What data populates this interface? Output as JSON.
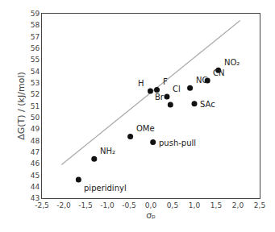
{
  "chart_data": {
    "type": "scatter",
    "x_label": "σₚ",
    "y_label": "ΔG(T) / (kJ/mol)",
    "x": [
      -1.66,
      -1.3,
      -0.47,
      0.05,
      -0.01,
      0.14,
      0.37,
      0.45,
      0.9,
      1.0,
      1.3,
      1.55
    ],
    "values": [
      44.6,
      46.4,
      48.35,
      47.85,
      52.3,
      52.4,
      51.8,
      51.1,
      52.55,
      51.2,
      53.2,
      54.1
    ],
    "color": "#111111",
    "marker": "circle",
    "annotations": [
      {
        "x": -1.66,
        "y": 44.6,
        "text": "piperidinyl"
      },
      {
        "x": -1.3,
        "y": 46.4,
        "text": "NH₂"
      },
      {
        "x": -0.47,
        "y": 48.35,
        "text": "OMe"
      },
      {
        "x": 0.05,
        "y": 47.85,
        "text": "push-pull"
      },
      {
        "x": -0.01,
        "y": 52.3,
        "text": "H"
      },
      {
        "x": 0.14,
        "y": 52.4,
        "text": "F"
      },
      {
        "x": 0.37,
        "y": 51.8,
        "text": "Cl"
      },
      {
        "x": 0.45,
        "y": 51.1,
        "text": "Br"
      },
      {
        "x": 0.9,
        "y": 52.55,
        "text": "NC"
      },
      {
        "x": 1.0,
        "y": 51.2,
        "text": "SAc"
      },
      {
        "x": 1.3,
        "y": 53.2,
        "text": "CN"
      },
      {
        "x": 1.55,
        "y": 54.1,
        "text": "NO₂"
      }
    ],
    "trendline": {
      "type": "line",
      "x": [
        -2.05,
        2.05
      ],
      "values": [
        45.8975,
        58.4025
      ],
      "color": "#aaaaaa",
      "line_style": "solid"
    },
    "xlim": [
      -2.5,
      2.5
    ],
    "ylim": [
      43,
      59
    ],
    "xticks": [
      {
        "value": -2.5,
        "label": "-2,5"
      },
      {
        "value": -2.0,
        "label": "-2,0"
      },
      {
        "value": -1.5,
        "label": "-1,5"
      },
      {
        "value": -1.0,
        "label": "-1,0"
      },
      {
        "value": -0.5,
        "label": "-0,5"
      },
      {
        "value": 0.0,
        "label": "0,0"
      },
      {
        "value": 0.5,
        "label": "0,5"
      },
      {
        "value": 1.0,
        "label": "1,0"
      },
      {
        "value": 1.5,
        "label": "1,5"
      },
      {
        "value": 2.0,
        "label": "2,0"
      },
      {
        "value": 2.5,
        "label": "2,5"
      }
    ],
    "yticks": [
      43,
      44,
      45,
      46,
      47,
      48,
      49,
      50,
      51,
      52,
      53,
      54,
      55,
      56,
      57,
      58,
      59
    ],
    "grid": false
  }
}
